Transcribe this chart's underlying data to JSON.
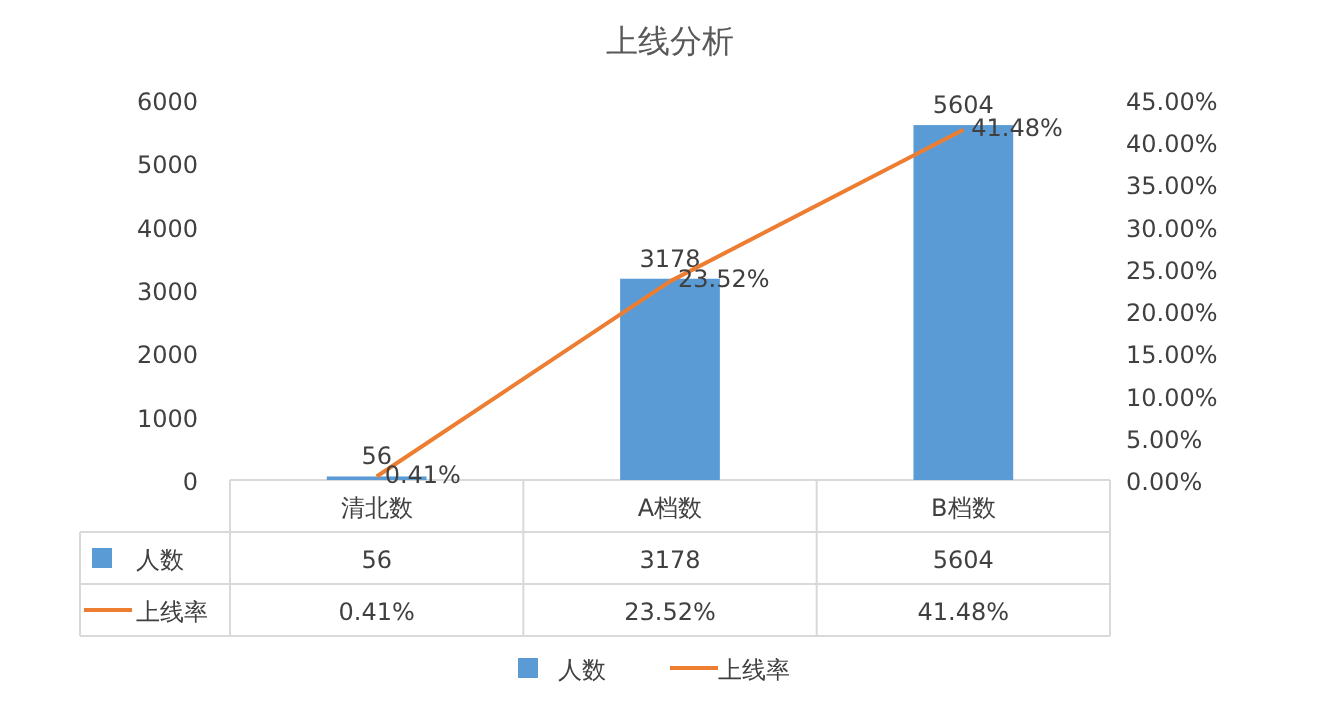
{
  "chart_data": {
    "type": "bar",
    "title": "上线分析",
    "categories": [
      "清北数",
      "A档数",
      "B档数"
    ],
    "series": [
      {
        "name": "人数",
        "color": "#5b9bd5",
        "values": [
          56,
          3178,
          5604
        ],
        "value_labels": [
          "56",
          "3178",
          "5604"
        ]
      },
      {
        "name": "上线率",
        "type": "line",
        "axis": "y2",
        "color": "#ed7d31",
        "values": [
          0.41,
          23.52,
          41.48
        ],
        "value_labels": [
          "0.41%",
          "23.52%",
          "41.48%"
        ]
      }
    ],
    "ylim": [
      0,
      6000
    ],
    "yticks": [
      0,
      1000,
      2000,
      3000,
      4000,
      5000,
      6000
    ],
    "y2lim": [
      0,
      45
    ],
    "y2ticks": [
      {
        "value": 0,
        "label": "0.00%"
      },
      {
        "value": 5,
        "label": "5.00%"
      },
      {
        "value": 10,
        "label": "10.00%"
      },
      {
        "value": 15,
        "label": "15.00%"
      },
      {
        "value": 20,
        "label": "20.00%"
      },
      {
        "value": 25,
        "label": "25.00%"
      },
      {
        "value": 30,
        "label": "30.00%"
      },
      {
        "value": 35,
        "label": "35.00%"
      },
      {
        "value": 40,
        "label": "40.00%"
      },
      {
        "value": 45,
        "label": "45.00%"
      }
    ],
    "legend": "bottom"
  }
}
